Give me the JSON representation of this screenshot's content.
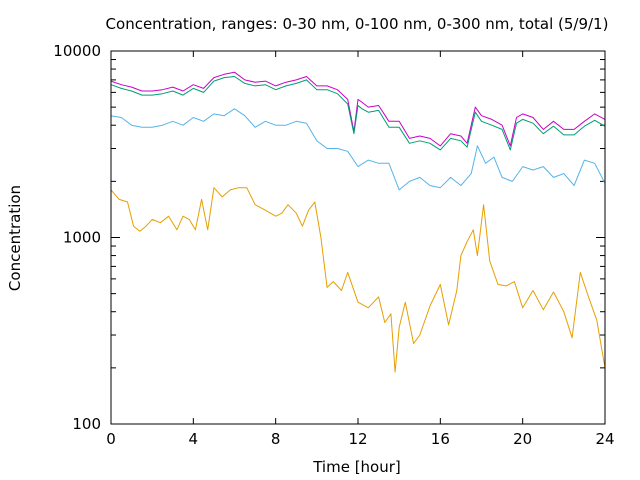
{
  "chart_data": {
    "type": "line",
    "title": "Concentration, ranges: 0-30 nm, 0-100 nm, 0-300 nm, total (5/9/1)",
    "xlabel": "Time [hour]",
    "ylabel": "Concentration",
    "xlim": [
      0,
      24
    ],
    "ylim": [
      100,
      10000
    ],
    "yscale": "log",
    "grid": false,
    "legend": "none",
    "xticks": [
      0,
      4,
      8,
      12,
      16,
      20,
      24
    ],
    "yticks": [
      100,
      1000,
      10000
    ],
    "ytick_labels": [
      "100",
      "1000",
      "10000"
    ],
    "series": [
      {
        "color": "#cc00cc",
        "x": [
          0,
          0.5,
          1,
          1.5,
          2,
          2.5,
          3,
          3.5,
          4,
          4.5,
          5,
          5.5,
          6,
          6.5,
          7,
          7.5,
          8,
          8.5,
          9,
          9.5,
          10,
          10.5,
          11,
          11.5,
          11.8,
          12,
          12.2,
          12.5,
          13,
          13.5,
          14,
          14.5,
          15,
          15.5,
          16,
          16.5,
          17,
          17.3,
          17.7,
          18,
          18.5,
          19,
          19.4,
          19.7,
          20,
          20.5,
          21,
          21.5,
          22,
          22.5,
          23,
          23.5,
          24
        ],
        "y": [
          6900,
          6600,
          6400,
          6100,
          6100,
          6200,
          6400,
          6100,
          6600,
          6300,
          7200,
          7500,
          7700,
          7000,
          6800,
          6900,
          6500,
          6800,
          7000,
          7300,
          6500,
          6500,
          6200,
          5500,
          3700,
          5500,
          5300,
          5000,
          5100,
          4200,
          4200,
          3400,
          3500,
          3400,
          3100,
          3600,
          3500,
          3200,
          5000,
          4500,
          4300,
          4000,
          3100,
          4400,
          4600,
          4400,
          3800,
          4200,
          3800,
          3800,
          4200,
          4600,
          4300
        ]
      },
      {
        "color": "#009e73",
        "x": [
          0,
          0.5,
          1,
          1.5,
          2,
          2.5,
          3,
          3.5,
          4,
          4.5,
          5,
          5.5,
          6,
          6.5,
          7,
          7.5,
          8,
          8.5,
          9,
          9.5,
          10,
          10.5,
          11,
          11.5,
          11.8,
          12,
          12.2,
          12.5,
          13,
          13.5,
          14,
          14.5,
          15,
          15.5,
          16,
          16.5,
          17,
          17.3,
          17.7,
          18,
          18.5,
          19,
          19.4,
          19.7,
          20,
          20.5,
          21,
          21.5,
          22,
          22.5,
          23,
          23.5,
          24
        ],
        "y": [
          6600,
          6300,
          6100,
          5800,
          5800,
          5900,
          6100,
          5800,
          6300,
          6000,
          6900,
          7200,
          7300,
          6700,
          6500,
          6600,
          6200,
          6500,
          6700,
          7000,
          6200,
          6200,
          5900,
          5200,
          3600,
          5100,
          4900,
          4700,
          4800,
          3900,
          3900,
          3200,
          3300,
          3200,
          2950,
          3400,
          3300,
          3050,
          4700,
          4200,
          4000,
          3800,
          2950,
          4100,
          4300,
          4100,
          3600,
          3950,
          3550,
          3550,
          3950,
          4250,
          3950
        ]
      },
      {
        "color": "#56b4e9",
        "x": [
          0,
          0.5,
          1,
          1.5,
          2,
          2.5,
          3,
          3.5,
          4,
          4.5,
          5,
          5.5,
          6,
          6.5,
          7,
          7.5,
          8,
          8.5,
          9,
          9.5,
          10,
          10.5,
          11,
          11.5,
          12,
          12.5,
          13,
          13.5,
          14,
          14.5,
          15,
          15.5,
          16,
          16.5,
          17,
          17.5,
          17.8,
          18.2,
          18.6,
          19,
          19.5,
          20,
          20.5,
          21,
          21.5,
          22,
          22.5,
          23,
          23.5,
          24
        ],
        "y": [
          4500,
          4400,
          4000,
          3900,
          3900,
          4000,
          4200,
          4000,
          4400,
          4200,
          4600,
          4500,
          4900,
          4500,
          3900,
          4200,
          4000,
          4000,
          4200,
          4100,
          3300,
          3000,
          3000,
          2900,
          2400,
          2600,
          2500,
          2500,
          1800,
          2000,
          2100,
          1900,
          1850,
          2100,
          1900,
          2200,
          3100,
          2500,
          2700,
          2100,
          2000,
          2400,
          2300,
          2400,
          2100,
          2200,
          1900,
          2600,
          2500,
          1950
        ]
      },
      {
        "color": "#e69f00",
        "x": [
          0,
          0.4,
          0.8,
          1.1,
          1.4,
          1.7,
          2,
          2.4,
          2.8,
          3.2,
          3.5,
          3.8,
          4.1,
          4.4,
          4.7,
          5,
          5.4,
          5.8,
          6.2,
          6.6,
          7,
          7.5,
          8,
          8.3,
          8.6,
          9,
          9.3,
          9.6,
          9.9,
          10.2,
          10.5,
          10.8,
          11.2,
          11.5,
          12,
          12.5,
          13,
          13.3,
          13.6,
          13.8,
          14,
          14.3,
          14.7,
          15,
          15.5,
          16,
          16.4,
          16.8,
          17,
          17.3,
          17.6,
          17.8,
          18.1,
          18.4,
          18.8,
          19.2,
          19.6,
          20,
          20.5,
          21,
          21.5,
          22,
          22.4,
          22.8,
          23.2,
          23.6,
          24
        ],
        "y": [
          1800,
          1600,
          1550,
          1150,
          1080,
          1150,
          1250,
          1200,
          1300,
          1100,
          1300,
          1250,
          1100,
          1600,
          1100,
          1850,
          1650,
          1800,
          1850,
          1850,
          1500,
          1400,
          1300,
          1350,
          1500,
          1350,
          1150,
          1400,
          1550,
          1000,
          540,
          580,
          520,
          650,
          450,
          420,
          480,
          350,
          390,
          190,
          330,
          450,
          270,
          300,
          430,
          560,
          340,
          520,
          800,
          950,
          1100,
          800,
          1500,
          750,
          560,
          550,
          580,
          420,
          520,
          410,
          510,
          400,
          290,
          650,
          480,
          360,
          200
        ]
      }
    ]
  }
}
